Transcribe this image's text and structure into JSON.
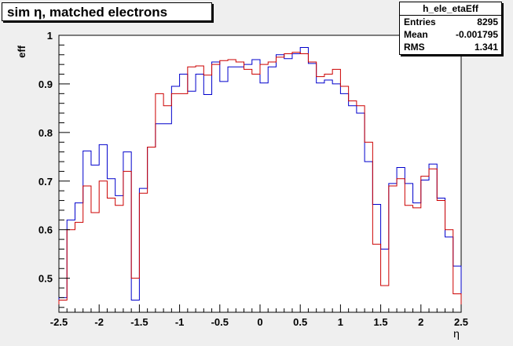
{
  "title": "sim η,  matched electrons",
  "stats": {
    "name": "h_ele_etaEff",
    "rows": [
      {
        "label": "Entries",
        "value": "8295"
      },
      {
        "label": "Mean",
        "value": "-0.001795"
      },
      {
        "label": "RMS",
        "value": "1.341"
      }
    ]
  },
  "chart_data": {
    "type": "line",
    "xlabel": "η",
    "ylabel": "eff",
    "xlim": [
      -2.5,
      2.5
    ],
    "ylim": [
      0.43,
      1.0
    ],
    "x_ticks": [
      -2.5,
      -2,
      -1.5,
      -1,
      -0.5,
      0,
      0.5,
      1,
      1.5,
      2,
      2.5
    ],
    "x_tick_labels": [
      "-2.5",
      "-2",
      "-1.5",
      "-1",
      "-0.5",
      "0",
      "0.5",
      "1",
      "1.5",
      "2",
      "2.5"
    ],
    "y_ticks": [
      0.5,
      0.6,
      0.7,
      0.8,
      0.9,
      1.0
    ],
    "y_tick_labels": [
      "0.5",
      "0.6",
      "0.7",
      "0.8",
      "0.9",
      "1"
    ],
    "bin_edges_start": -2.5,
    "bin_width": 0.1,
    "grid": false,
    "series": [
      {
        "color": "#0000cc",
        "values": [
          0.46,
          0.62,
          0.655,
          0.762,
          0.733,
          0.775,
          0.705,
          0.67,
          0.76,
          0.455,
          0.685,
          0.77,
          0.818,
          0.818,
          0.895,
          0.92,
          0.885,
          0.92,
          0.878,
          0.945,
          0.905,
          0.935,
          0.935,
          0.94,
          0.95,
          0.902,
          0.935,
          0.96,
          0.952,
          0.962,
          0.975,
          0.942,
          0.902,
          0.908,
          0.9,
          0.88,
          0.855,
          0.84,
          0.74,
          0.652,
          0.56,
          0.695,
          0.728,
          0.695,
          0.655,
          0.702,
          0.735,
          0.665,
          0.585,
          0.525
        ]
      },
      {
        "color": "#cc0000",
        "values": [
          0.455,
          0.6,
          0.615,
          0.69,
          0.635,
          0.7,
          0.665,
          0.65,
          0.72,
          0.5,
          0.675,
          0.77,
          0.88,
          0.855,
          0.88,
          0.88,
          0.935,
          0.937,
          0.918,
          0.94,
          0.948,
          0.95,
          0.945,
          0.93,
          0.92,
          0.94,
          0.945,
          0.955,
          0.962,
          0.965,
          0.962,
          0.945,
          0.915,
          0.92,
          0.93,
          0.895,
          0.865,
          0.855,
          0.78,
          0.57,
          0.485,
          0.69,
          0.705,
          0.65,
          0.645,
          0.71,
          0.725,
          0.66,
          0.6,
          0.468
        ]
      }
    ]
  }
}
